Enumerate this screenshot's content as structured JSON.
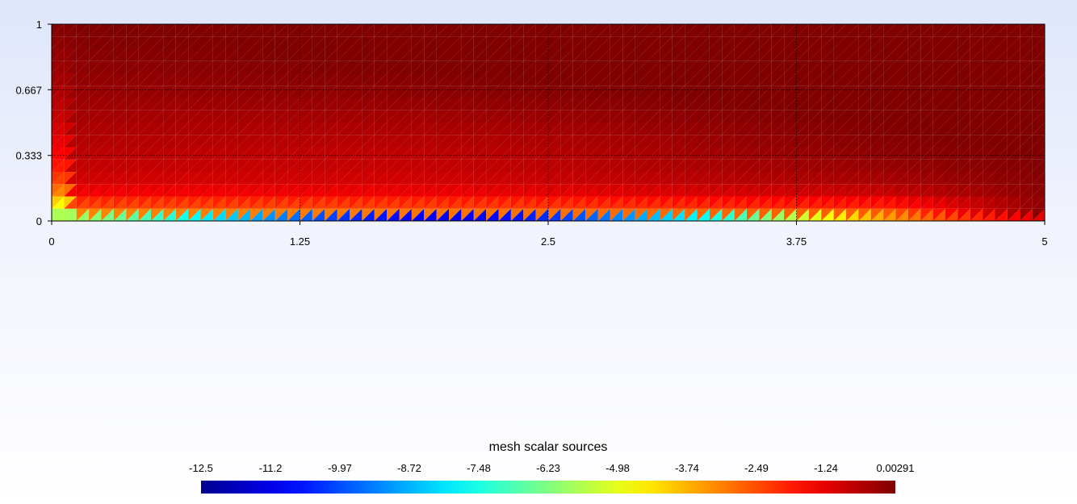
{
  "chart_data": {
    "type": "heatmap",
    "title": "",
    "xlabel": "",
    "ylabel": "",
    "xlim": [
      0,
      5
    ],
    "ylim": [
      0,
      1
    ],
    "x_ticks": [
      "0",
      "1.25",
      "2.5",
      "3.75",
      "5"
    ],
    "y_ticks": [
      "0",
      "0.333",
      "0.667",
      "1"
    ],
    "x_tick_values": [
      0,
      1.25,
      2.5,
      3.75,
      5
    ],
    "y_tick_values": [
      0,
      0.333,
      0.667,
      1
    ],
    "grid": true,
    "mesh_cells_x": 80,
    "mesh_cells_y": 16,
    "colorbar": {
      "title": "mesh scalar sources",
      "labels": [
        "-12.5",
        "-11.2",
        "-9.97",
        "-8.72",
        "-7.48",
        "-6.23",
        "-4.98",
        "-3.74",
        "-2.49",
        "-1.24",
        "0.00291"
      ],
      "min": -12.5,
      "max": 0.00291,
      "colormap": "jet",
      "placement": "bottom"
    },
    "colors": [
      "#00008f",
      "#0000ff",
      "#00ffff",
      "#ffff00",
      "#ff0000",
      "#800000"
    ]
  }
}
